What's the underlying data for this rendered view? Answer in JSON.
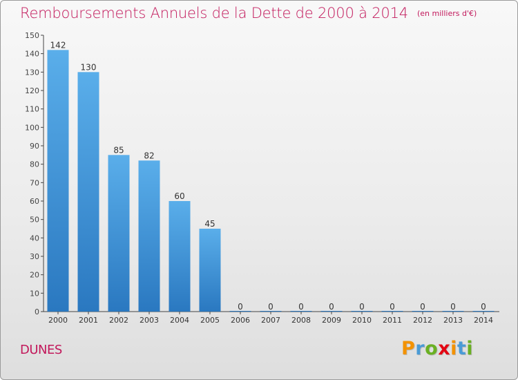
{
  "title": "Remboursements Annuels de la Dette de 2000 à 2014",
  "unit": "(en milliers d'€)",
  "commune": "DUNES",
  "logo": {
    "text": "Proxiti",
    "letters": [
      {
        "char": "P",
        "color": "#f39200"
      },
      {
        "char": "r",
        "color": "#4a9bd6"
      },
      {
        "char": "o",
        "color": "#6ab023"
      },
      {
        "char": "x",
        "color": "#e30613"
      },
      {
        "char": "i",
        "color": "#f39200"
      },
      {
        "char": "t",
        "color": "#4a9bd6"
      },
      {
        "char": "i",
        "color": "#6ab023"
      }
    ]
  },
  "colors": {
    "title": "#c2185b",
    "bar_light": "#5aaeea",
    "bar_dark": "#2a78c0",
    "axis": "#444444"
  },
  "chart_data": {
    "type": "bar",
    "categories": [
      "2000",
      "2001",
      "2002",
      "2003",
      "2004",
      "2005",
      "2006",
      "2007",
      "2008",
      "2009",
      "2010",
      "2011",
      "2012",
      "2013",
      "2014"
    ],
    "values": [
      142,
      130,
      85,
      82,
      60,
      45,
      0,
      0,
      0,
      0,
      0,
      0,
      0,
      0,
      0
    ],
    "data_labels": [
      "142",
      "130",
      "85",
      "82",
      "60",
      "45",
      "0",
      "0",
      "0",
      "0",
      "0",
      "0",
      "0",
      "0",
      "0"
    ],
    "title": "Remboursements Annuels de la Dette de 2000 à 2014",
    "unit": "(en milliers d'€)",
    "xlabel": "",
    "ylabel": "",
    "ylim": [
      0,
      150
    ],
    "yticks": [
      0,
      10,
      20,
      30,
      40,
      50,
      60,
      70,
      80,
      90,
      100,
      110,
      120,
      130,
      140,
      150
    ],
    "grid": false
  }
}
